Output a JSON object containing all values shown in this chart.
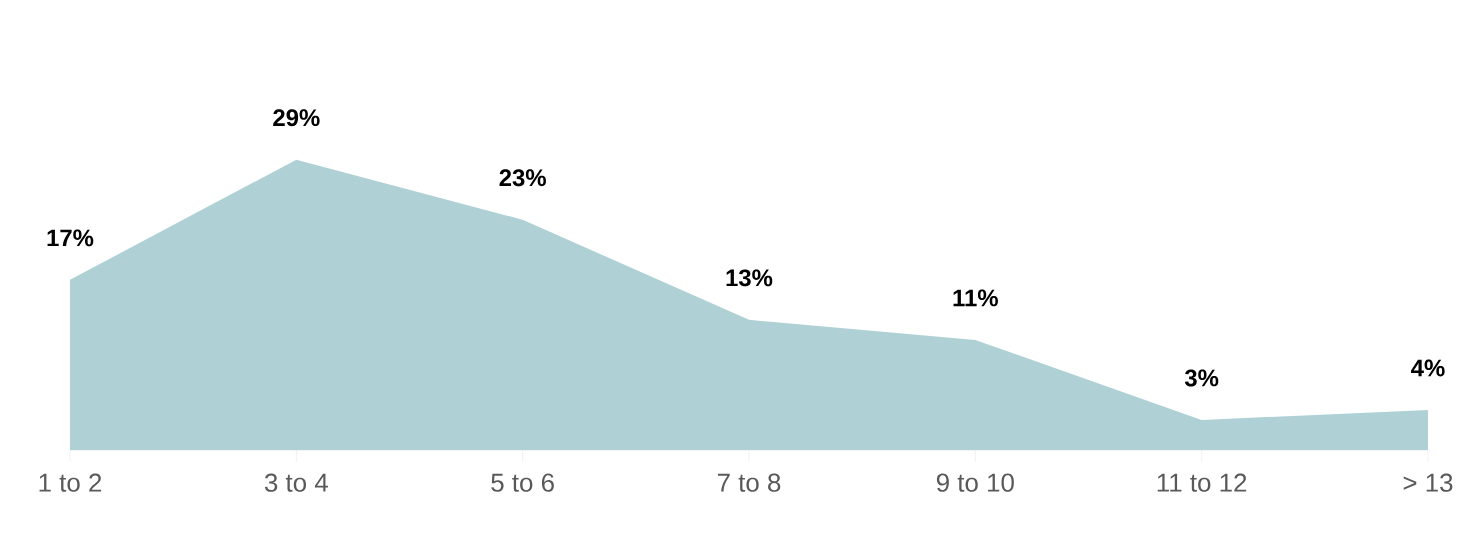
{
  "chart_data": {
    "type": "area",
    "categories": [
      "1 to 2",
      "3 to 4",
      "5 to 6",
      "7 to 8",
      "9 to 10",
      "11 to 12",
      "> 13"
    ],
    "values": [
      17,
      29,
      23,
      13,
      11,
      3,
      4
    ],
    "color": "#afd1d5",
    "value_labels": [
      "17%",
      "29%",
      "23%",
      "13%",
      "11%",
      "3%",
      "4%"
    ]
  }
}
